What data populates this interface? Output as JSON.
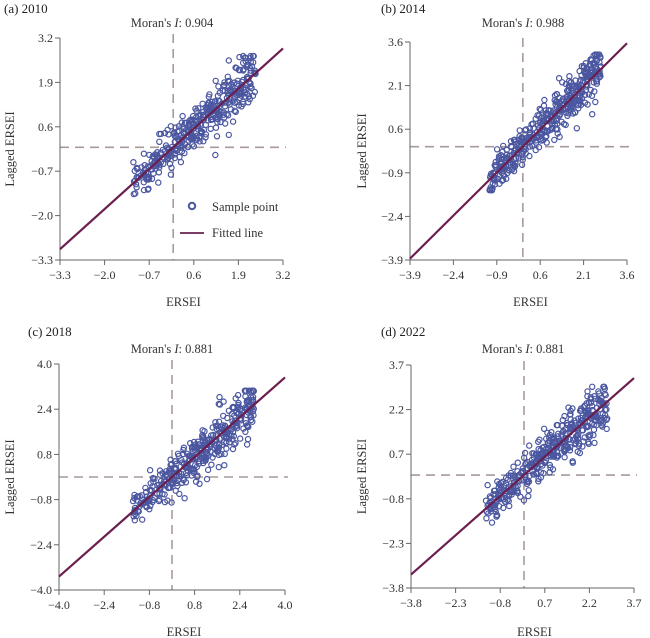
{
  "figure": {
    "legend": {
      "sample_label": "Sample point",
      "fitted_label": "Fitted line"
    },
    "colors": {
      "points": "#4a56a0",
      "fit": "#6b1f4e",
      "dash": "#a89a9a",
      "axis": "#666666"
    }
  },
  "chart_data": [
    {
      "type": "scatter",
      "panel": "(a) 2010",
      "title": "(a) 2010",
      "moran_prefix": "Moran's ",
      "moran_italic": "I",
      "moran_suffix": ": 0.904",
      "moran_value": 0.904,
      "xlabel": "ERSEI",
      "ylabel": "Lagged ERSEI",
      "xlim": [
        -3.3,
        3.2
      ],
      "ylim": [
        -3.3,
        3.2
      ],
      "xticks": [
        "-3.3",
        "-2.0",
        "-0.7",
        "0.6",
        "1.9",
        "3.2"
      ],
      "yticks": [
        "-3.3",
        "-2.0",
        "-0.7",
        "0.6",
        "1.9",
        "3.2"
      ],
      "xtick_values": [
        -3.3,
        -2.0,
        -0.7,
        0.6,
        1.9,
        3.2
      ],
      "ytick_values": [
        -3.3,
        -2.0,
        -0.7,
        0.6,
        1.9,
        3.2
      ],
      "ref_x": 0.0,
      "ref_y": 0.0,
      "fit": {
        "slope": 0.904,
        "intercept": 0.0
      },
      "cluster": {
        "xmin": -1.2,
        "xmax": 2.4,
        "spread": 0.45,
        "n": 380,
        "seed": 11
      },
      "legend_position": "lower-right"
    },
    {
      "type": "scatter",
      "panel": "(b) 2014",
      "title": "(b) 2014",
      "moran_prefix": "Moran's ",
      "moran_italic": "I",
      "moran_suffix": ": 0.988",
      "moran_value": 0.988,
      "xlabel": "ERSEI",
      "ylabel": "Lagged ERSEI",
      "xlim": [
        -3.9,
        3.6
      ],
      "ylim": [
        -3.9,
        3.6
      ],
      "xticks": [
        "-3.9",
        "-2.4",
        "-0.9",
        "0.6",
        "2.1",
        "3.6"
      ],
      "yticks": [
        "-3.9",
        "-2.4",
        "-0.9",
        "0.6",
        "2.1",
        "3.6"
      ],
      "xtick_values": [
        -3.9,
        -2.4,
        -0.9,
        0.6,
        2.1,
        3.6
      ],
      "ytick_values": [
        -3.9,
        -2.4,
        -0.9,
        0.6,
        2.1,
        3.6
      ],
      "ref_x": 0.0,
      "ref_y": 0.0,
      "fit": {
        "slope": 0.988,
        "intercept": 0.0
      },
      "cluster": {
        "xmin": -1.2,
        "xmax": 2.7,
        "spread": 0.5,
        "n": 420,
        "seed": 23
      }
    },
    {
      "type": "scatter",
      "panel": "(c) 2018",
      "title": "(c) 2018",
      "moran_prefix": "Moran's ",
      "moran_italic": "I",
      "moran_suffix": ": 0.881",
      "moran_value": 0.881,
      "xlabel": "ERSEI",
      "ylabel": "Lagged ERSEI",
      "xlim": [
        -4.0,
        4.0
      ],
      "ylim": [
        -4.0,
        4.0
      ],
      "xticks": [
        "-4.0",
        "-2.4",
        "-0.8",
        "0.8",
        "2.4",
        "4.0"
      ],
      "yticks": [
        "-4.0",
        "-2.4",
        "-0.8",
        "0.8",
        "2.4",
        "4.0"
      ],
      "xtick_values": [
        -4.0,
        -2.4,
        -0.8,
        0.8,
        2.4,
        4.0
      ],
      "ytick_values": [
        -4.0,
        -2.4,
        -0.8,
        0.8,
        2.4,
        4.0
      ],
      "ref_x": 0.0,
      "ref_y": 0.0,
      "fit": {
        "slope": 0.881,
        "intercept": 0.0
      },
      "cluster": {
        "xmin": -1.4,
        "xmax": 2.9,
        "spread": 0.55,
        "n": 380,
        "seed": 37
      }
    },
    {
      "type": "scatter",
      "panel": "(d) 2022",
      "title": "(d) 2022",
      "moran_prefix": "Moran's ",
      "moran_italic": "I",
      "moran_suffix": ": 0.881",
      "moran_value": 0.881,
      "xlabel": "ERSEI",
      "ylabel": "Lagged ERSEI",
      "xlim": [
        -3.8,
        3.7
      ],
      "ylim": [
        -3.8,
        3.7
      ],
      "xticks": [
        "-3.8",
        "-2.3",
        "-0.8",
        "0.7",
        "2.2",
        "3.7"
      ],
      "yticks": [
        "-3.8",
        "-2.3",
        "-0.8",
        "0.7",
        "2.2",
        "3.7"
      ],
      "xtick_values": [
        -3.8,
        -2.3,
        -0.8,
        0.7,
        2.2,
        3.7
      ],
      "ytick_values": [
        -3.8,
        -2.3,
        -0.8,
        0.7,
        2.2,
        3.7
      ],
      "ref_x": 0.0,
      "ref_y": 0.0,
      "fit": {
        "slope": 0.881,
        "intercept": 0.0
      },
      "cluster": {
        "xmin": -1.3,
        "xmax": 2.8,
        "spread": 0.5,
        "n": 420,
        "seed": 51
      }
    }
  ]
}
